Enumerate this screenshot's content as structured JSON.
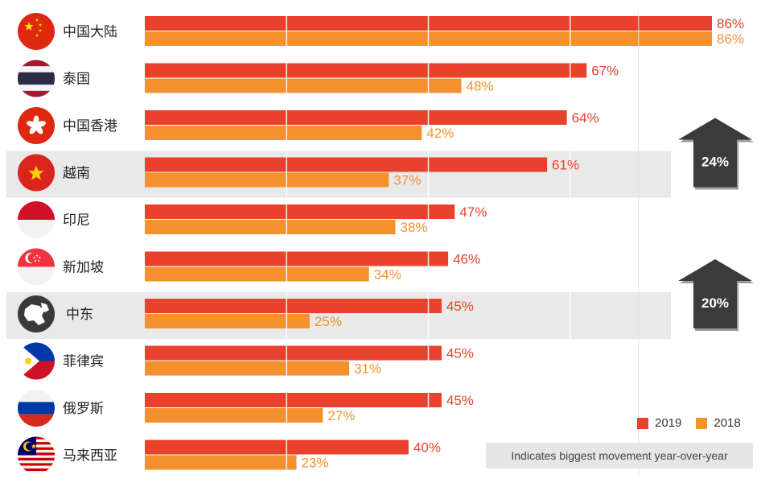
{
  "chart_data": {
    "type": "bar",
    "orientation": "horizontal",
    "categories": [
      "中国大陆",
      "泰国",
      "中国香港",
      "越南",
      "印尼",
      "新加坡",
      "中东",
      "菲律宾",
      "俄罗斯",
      "马来西亚"
    ],
    "series": [
      {
        "name": "2019",
        "color": "#e8412c",
        "values": [
          86,
          67,
          64,
          61,
          47,
          46,
          45,
          45,
          45,
          40
        ]
      },
      {
        "name": "2018",
        "color": "#f4912f",
        "values": [
          86,
          48,
          42,
          37,
          38,
          34,
          25,
          31,
          27,
          23
        ]
      }
    ],
    "value_suffix": "%",
    "xlim": [
      0,
      86
    ],
    "grid": true,
    "legend_position": "bottom-right",
    "highlighted": [
      {
        "category": "越南",
        "movement": "24%"
      },
      {
        "category": "中东",
        "movement": "20%"
      }
    ],
    "icons": [
      "china-flag-icon",
      "thailand-flag-icon",
      "hong-kong-flag-icon",
      "vietnam-flag-icon",
      "indonesia-flag-icon",
      "singapore-flag-icon",
      "middle-east-map-icon",
      "philippines-flag-icon",
      "russia-flag-icon",
      "malaysia-flag-icon"
    ],
    "note": "Indicates biggest movement year-over-year"
  },
  "legend": {
    "label_2019": "2019",
    "label_2018": "2018"
  }
}
